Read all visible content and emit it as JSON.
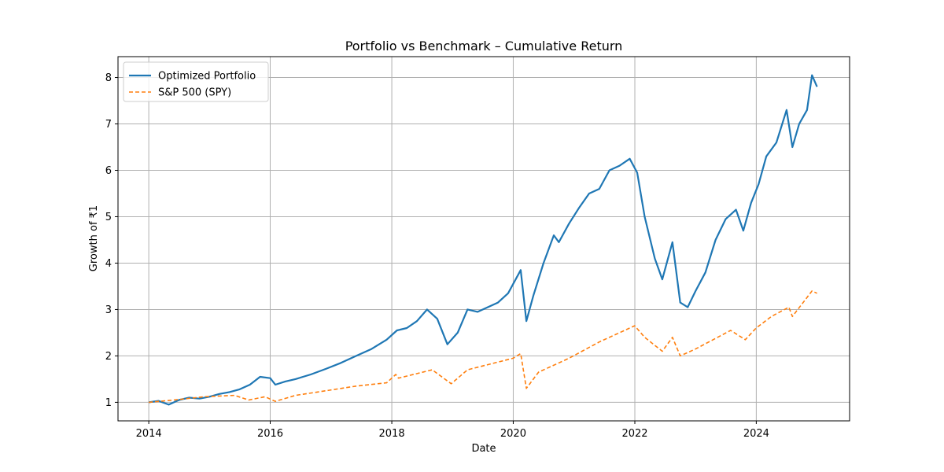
{
  "chart_data": {
    "type": "line",
    "title": "Portfolio vs Benchmark – Cumulative Return",
    "xlabel": "Date",
    "ylabel": "Growth of ₹1",
    "x_range": [
      "2013-06-30",
      "2025-07-15"
    ],
    "ylim": [
      0.6,
      8.45
    ],
    "x_ticks": [
      {
        "date": "2014-01-01",
        "label": "2014"
      },
      {
        "date": "2016-01-01",
        "label": "2016"
      },
      {
        "date": "2018-01-01",
        "label": "2018"
      },
      {
        "date": "2020-01-01",
        "label": "2020"
      },
      {
        "date": "2022-01-01",
        "label": "2022"
      },
      {
        "date": "2024-01-01",
        "label": "2024"
      }
    ],
    "y_ticks": [
      1,
      2,
      3,
      4,
      5,
      6,
      7,
      8
    ],
    "grid": true,
    "legend_position": "upper-left",
    "series": [
      {
        "name": "Optimized Portfolio",
        "color": "#1f77b4",
        "style": "solid",
        "points": [
          [
            "2014-01-01",
            1.0
          ],
          [
            "2014-03-01",
            1.03
          ],
          [
            "2014-05-01",
            0.95
          ],
          [
            "2014-07-01",
            1.05
          ],
          [
            "2014-09-01",
            1.1
          ],
          [
            "2014-11-01",
            1.08
          ],
          [
            "2015-01-01",
            1.12
          ],
          [
            "2015-03-01",
            1.18
          ],
          [
            "2015-05-01",
            1.22
          ],
          [
            "2015-07-01",
            1.28
          ],
          [
            "2015-09-01",
            1.38
          ],
          [
            "2015-11-01",
            1.55
          ],
          [
            "2016-01-01",
            1.52
          ],
          [
            "2016-02-01",
            1.38
          ],
          [
            "2016-04-01",
            1.45
          ],
          [
            "2016-06-01",
            1.5
          ],
          [
            "2016-09-01",
            1.6
          ],
          [
            "2016-12-01",
            1.72
          ],
          [
            "2017-03-01",
            1.85
          ],
          [
            "2017-06-01",
            2.0
          ],
          [
            "2017-09-01",
            2.15
          ],
          [
            "2017-12-01",
            2.35
          ],
          [
            "2018-02-01",
            2.55
          ],
          [
            "2018-04-01",
            2.6
          ],
          [
            "2018-06-01",
            2.75
          ],
          [
            "2018-08-01",
            3.0
          ],
          [
            "2018-10-01",
            2.8
          ],
          [
            "2018-12-01",
            2.25
          ],
          [
            "2019-02-01",
            2.5
          ],
          [
            "2019-04-01",
            3.0
          ],
          [
            "2019-06-01",
            2.95
          ],
          [
            "2019-08-01",
            3.05
          ],
          [
            "2019-10-01",
            3.15
          ],
          [
            "2019-12-01",
            3.35
          ],
          [
            "2020-02-15",
            3.85
          ],
          [
            "2020-03-20",
            2.75
          ],
          [
            "2020-05-01",
            3.3
          ],
          [
            "2020-07-01",
            4.0
          ],
          [
            "2020-09-01",
            4.6
          ],
          [
            "2020-10-01",
            4.45
          ],
          [
            "2020-12-01",
            4.85
          ],
          [
            "2021-02-01",
            5.2
          ],
          [
            "2021-04-01",
            5.5
          ],
          [
            "2021-06-01",
            5.6
          ],
          [
            "2021-08-01",
            6.0
          ],
          [
            "2021-10-01",
            6.1
          ],
          [
            "2021-12-01",
            6.25
          ],
          [
            "2022-01-15",
            5.95
          ],
          [
            "2022-03-01",
            5.0
          ],
          [
            "2022-05-01",
            4.1
          ],
          [
            "2022-06-15",
            3.65
          ],
          [
            "2022-08-15",
            4.45
          ],
          [
            "2022-10-01",
            3.15
          ],
          [
            "2022-11-15",
            3.05
          ],
          [
            "2023-01-01",
            3.4
          ],
          [
            "2023-03-01",
            3.8
          ],
          [
            "2023-05-01",
            4.5
          ],
          [
            "2023-07-01",
            4.95
          ],
          [
            "2023-09-01",
            5.15
          ],
          [
            "2023-10-15",
            4.7
          ],
          [
            "2023-12-01",
            5.3
          ],
          [
            "2024-01-15",
            5.7
          ],
          [
            "2024-03-01",
            6.3
          ],
          [
            "2024-05-01",
            6.6
          ],
          [
            "2024-07-01",
            7.3
          ],
          [
            "2024-08-05",
            6.5
          ],
          [
            "2024-09-15",
            7.0
          ],
          [
            "2024-11-01",
            7.3
          ],
          [
            "2024-12-01",
            8.05
          ],
          [
            "2024-12-31",
            7.8
          ]
        ]
      },
      {
        "name": "S&P 500 (SPY)",
        "color": "#ff7f0e",
        "style": "dashed",
        "points": [
          [
            "2014-01-01",
            1.0
          ],
          [
            "2014-06-01",
            1.05
          ],
          [
            "2014-12-01",
            1.12
          ],
          [
            "2015-06-01",
            1.15
          ],
          [
            "2015-08-25",
            1.05
          ],
          [
            "2015-12-01",
            1.12
          ],
          [
            "2016-02-01",
            1.02
          ],
          [
            "2016-06-01",
            1.15
          ],
          [
            "2016-12-01",
            1.25
          ],
          [
            "2017-06-01",
            1.35
          ],
          [
            "2017-12-01",
            1.42
          ],
          [
            "2018-01-25",
            1.6
          ],
          [
            "2018-02-10",
            1.52
          ],
          [
            "2018-09-01",
            1.7
          ],
          [
            "2018-12-24",
            1.4
          ],
          [
            "2019-04-01",
            1.7
          ],
          [
            "2019-12-31",
            1.95
          ],
          [
            "2020-02-15",
            2.05
          ],
          [
            "2020-03-20",
            1.3
          ],
          [
            "2020-06-01",
            1.65
          ],
          [
            "2020-12-01",
            1.95
          ],
          [
            "2021-06-01",
            2.3
          ],
          [
            "2021-12-31",
            2.65
          ],
          [
            "2022-03-01",
            2.4
          ],
          [
            "2022-06-15",
            2.1
          ],
          [
            "2022-08-15",
            2.4
          ],
          [
            "2022-10-01",
            2.0
          ],
          [
            "2023-01-01",
            2.15
          ],
          [
            "2023-07-31",
            2.55
          ],
          [
            "2023-10-27",
            2.35
          ],
          [
            "2023-12-31",
            2.6
          ],
          [
            "2024-04-01",
            2.85
          ],
          [
            "2024-07-15",
            3.05
          ],
          [
            "2024-08-05",
            2.85
          ],
          [
            "2024-12-01",
            3.4
          ],
          [
            "2024-12-31",
            3.35
          ]
        ]
      }
    ]
  }
}
